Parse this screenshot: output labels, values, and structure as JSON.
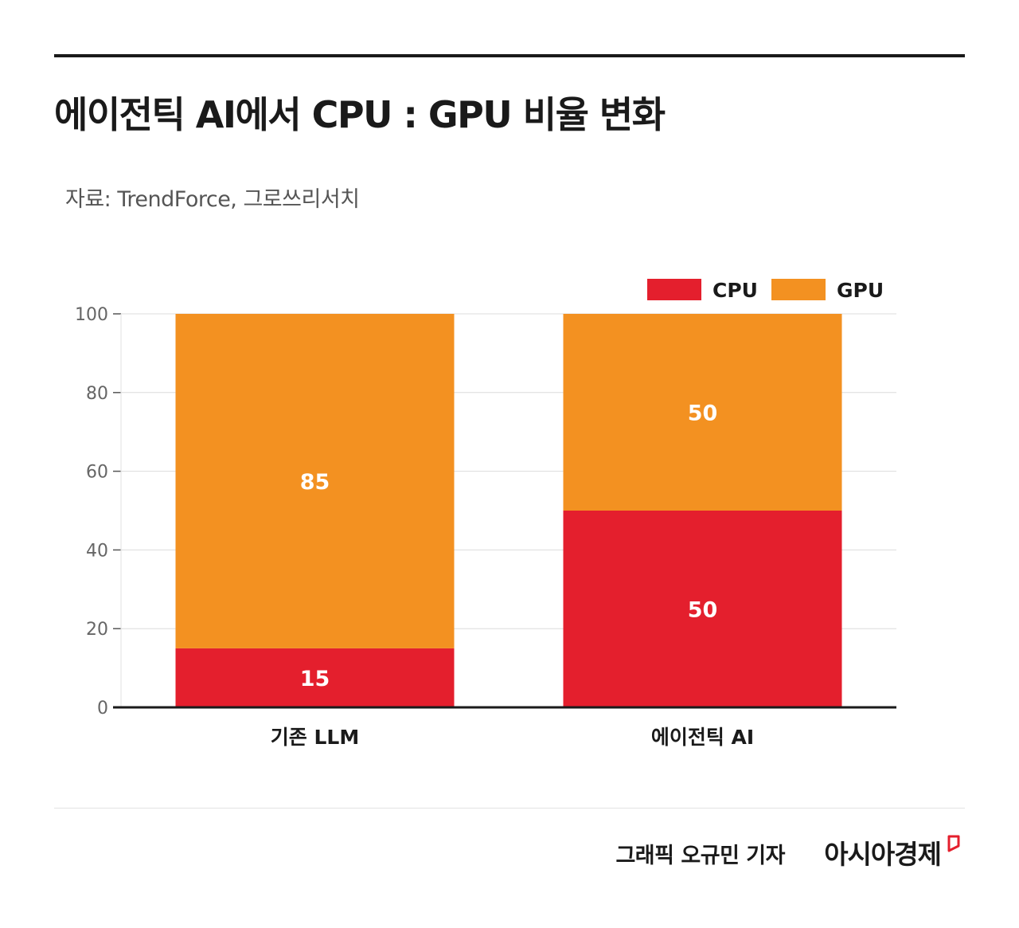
{
  "title": "에이전틱 AI에서 CPU : GPU 비율 변화",
  "source": "자료: TrendForce, 그로쓰리서치",
  "footer": {
    "credit": "그래픽  오규민 기자",
    "brand": "아시아경제"
  },
  "colors": {
    "cpu": "#e41f2d",
    "gpu": "#f39121",
    "text": "#1a1a1a",
    "grid": "#dcdcdc"
  },
  "chart_data": {
    "type": "bar",
    "stacked": true,
    "categories": [
      "기존 LLM",
      "에이전틱 AI"
    ],
    "series": [
      {
        "name": "CPU",
        "color": "#e41f2d",
        "values": [
          15,
          50
        ]
      },
      {
        "name": "GPU",
        "color": "#f39121",
        "values": [
          85,
          50
        ]
      }
    ],
    "data_labels": [
      [
        "15",
        "50"
      ],
      [
        "85",
        "50"
      ]
    ],
    "ylim": [
      0,
      100
    ],
    "yticks": [
      0,
      20,
      40,
      60,
      80,
      100
    ],
    "grid": true,
    "legend": "top-right"
  }
}
